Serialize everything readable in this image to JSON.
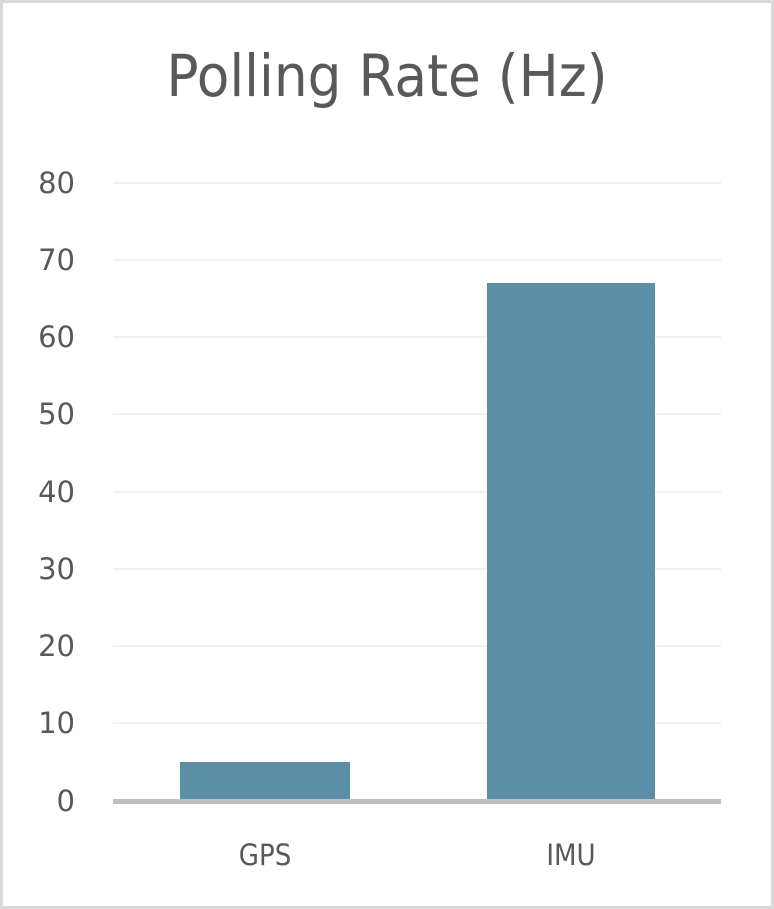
{
  "chart_data": {
    "type": "bar",
    "title": "Polling Rate (Hz)",
    "categories": [
      "GPS",
      "IMU"
    ],
    "values": [
      5,
      67
    ],
    "xlabel": "",
    "ylabel": "",
    "ylim": [
      0,
      80
    ],
    "yticks": [
      "0",
      "10",
      "20",
      "30",
      "40",
      "50",
      "60",
      "70",
      "80"
    ],
    "grid": true,
    "legend": null,
    "bar_color": "#5b8fa8"
  },
  "colors": {
    "bar": "#5b8fa8",
    "text": "#595959",
    "gridline": "#f0f0f0",
    "axis": "#bfbfbf",
    "border": "#d9d9d9"
  }
}
